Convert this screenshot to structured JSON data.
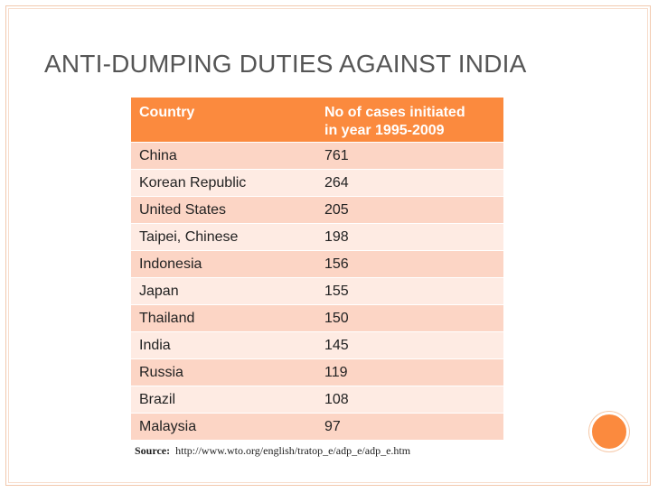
{
  "slide": {
    "title": "ANTI-DUMPING DUTIES AGAINST INDIA"
  },
  "table": {
    "headers": {
      "country": "Country",
      "cases_line1": "No of cases initiated",
      "cases_line2": "in year 1995-2009"
    },
    "rows": [
      {
        "country": "China",
        "cases": "761"
      },
      {
        "country": "Korean Republic",
        "cases": "264"
      },
      {
        "country": "United States",
        "cases": "205"
      },
      {
        "country": "Taipei, Chinese",
        "cases": "198"
      },
      {
        "country": "Indonesia",
        "cases": "156"
      },
      {
        "country": "Japan",
        "cases": "155"
      },
      {
        "country": "Thailand",
        "cases": "150"
      },
      {
        "country": "India",
        "cases": "145"
      },
      {
        "country": "Russia",
        "cases": "119"
      },
      {
        "country": "Brazil",
        "cases": "108"
      },
      {
        "country": "Malaysia",
        "cases": "97"
      }
    ]
  },
  "source": {
    "label": "Source:",
    "url": "http://www.wto.org/english/tratop_e/adp_e/adp_e.htm"
  },
  "colors": {
    "header_bg": "#fb8a3e",
    "row_odd": "#fcd5c5",
    "row_even": "#feebe3",
    "title_text": "#555555"
  }
}
